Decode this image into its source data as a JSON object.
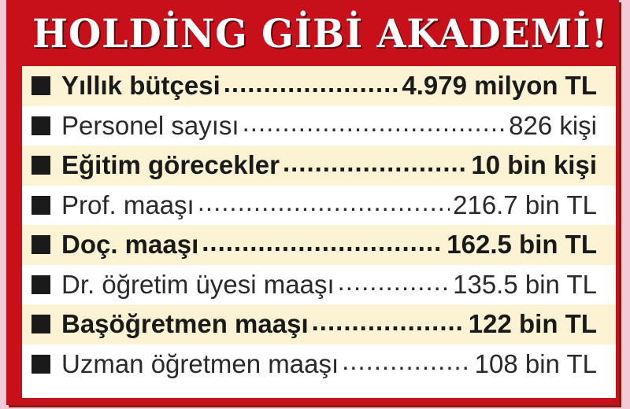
{
  "title": "HOLDİNG GİBİ AKADEMİ!",
  "colors": {
    "frame": "#c8101a",
    "highlight_row": "#fbf3d4",
    "bullet": "#1a1a1a"
  },
  "rows": [
    {
      "label": "Yıllık bütçesi",
      "value": "4.979 milyon TL",
      "bold": true
    },
    {
      "label": "Personel sayısı",
      "value": "826 kişi",
      "bold": false
    },
    {
      "label": "Eğitim görecekler",
      "value": "10 bin kişi",
      "bold": true
    },
    {
      "label": "Prof. maaşı",
      "value": "216.7 bin TL",
      "bold": false
    },
    {
      "label": "Doç. maaşı",
      "value": "162.5 bin TL",
      "bold": true
    },
    {
      "label": "Dr. öğretim üyesi maaşı",
      "value": "135.5 bin TL",
      "bold": false
    },
    {
      "label": "Başöğretmen maaşı",
      "value": "122 bin TL",
      "bold": true
    },
    {
      "label": "Uzman öğretmen maaşı",
      "value": "108 bin TL",
      "bold": false
    }
  ]
}
